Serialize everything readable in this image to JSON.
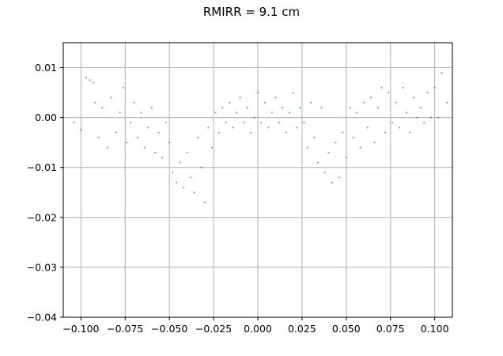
{
  "chart_data": {
    "type": "scatter",
    "title": "RMIRR = 9.1 cm",
    "xlabel": "",
    "ylabel": "",
    "xlim": [
      -0.11,
      0.11
    ],
    "ylim": [
      -0.04,
      0.015
    ],
    "x_ticks": [
      -0.1,
      -0.075,
      -0.05,
      -0.025,
      0.0,
      0.025,
      0.05,
      0.075,
      0.1
    ],
    "x_tick_labels": [
      "−0.100",
      "−0.075",
      "−0.050",
      "−0.025",
      "0.000",
      "0.025",
      "0.050",
      "0.075",
      "0.100"
    ],
    "y_ticks": [
      0.01,
      0.0,
      -0.01,
      -0.02,
      -0.03,
      -0.04
    ],
    "y_tick_labels": [
      "0.01",
      "0.00",
      "−0.01",
      "−0.02",
      "−0.03",
      "−0.04"
    ],
    "grid": true,
    "marker_color": "#1f77b4",
    "series": [
      {
        "name": "",
        "points": [
          [
            -0.104,
            -0.001
          ],
          [
            -0.1,
            -0.0025
          ],
          [
            -0.097,
            0.008
          ],
          [
            -0.095,
            0.0075
          ],
          [
            -0.093,
            0.007
          ],
          [
            -0.092,
            0.003
          ],
          [
            -0.09,
            -0.004
          ],
          [
            -0.088,
            0.002
          ],
          [
            -0.085,
            -0.006
          ],
          [
            -0.083,
            0.004
          ],
          [
            -0.08,
            -0.003
          ],
          [
            -0.078,
            0.001
          ],
          [
            -0.076,
            0.006
          ],
          [
            -0.074,
            -0.005
          ],
          [
            -0.072,
            -0.001
          ],
          [
            -0.07,
            0.003
          ],
          [
            -0.068,
            -0.004
          ],
          [
            -0.066,
            0.001
          ],
          [
            -0.064,
            -0.006
          ],
          [
            -0.062,
            -0.002
          ],
          [
            -0.06,
            0.002
          ],
          [
            -0.058,
            -0.007
          ],
          [
            -0.056,
            -0.003
          ],
          [
            -0.054,
            -0.008
          ],
          [
            -0.052,
            -0.001
          ],
          [
            -0.05,
            -0.005
          ],
          [
            -0.048,
            -0.011
          ],
          [
            -0.046,
            -0.013
          ],
          [
            -0.044,
            -0.009
          ],
          [
            -0.042,
            -0.014
          ],
          [
            -0.04,
            -0.007
          ],
          [
            -0.038,
            -0.012
          ],
          [
            -0.036,
            -0.015
          ],
          [
            -0.034,
            -0.004
          ],
          [
            -0.032,
            -0.01
          ],
          [
            -0.03,
            -0.017
          ],
          [
            -0.028,
            -0.002
          ],
          [
            -0.026,
            -0.006
          ],
          [
            -0.024,
            0.001
          ],
          [
            -0.022,
            -0.003
          ],
          [
            -0.02,
            0.002
          ],
          [
            -0.018,
            -0.001
          ],
          [
            -0.016,
            0.003
          ],
          [
            -0.014,
            -0.002
          ],
          [
            -0.012,
            0.001
          ],
          [
            -0.01,
            0.004
          ],
          [
            -0.008,
            -0.001
          ],
          [
            -0.006,
            0.002
          ],
          [
            -0.004,
            -0.003
          ],
          [
            -0.002,
            0.0
          ],
          [
            0.0,
            0.005
          ],
          [
            0.002,
            -0.001
          ],
          [
            0.004,
            0.003
          ],
          [
            0.006,
            -0.002
          ],
          [
            0.008,
            0.001
          ],
          [
            0.01,
            0.004
          ],
          [
            0.012,
            -0.001
          ],
          [
            0.014,
            0.002
          ],
          [
            0.016,
            -0.003
          ],
          [
            0.018,
            0.001
          ],
          [
            0.02,
            0.005
          ],
          [
            0.022,
            -0.002
          ],
          [
            0.024,
            0.002
          ],
          [
            0.026,
            -0.001
          ],
          [
            0.028,
            -0.006
          ],
          [
            0.03,
            0.003
          ],
          [
            0.032,
            -0.004
          ],
          [
            0.034,
            -0.009
          ],
          [
            0.036,
            0.002
          ],
          [
            0.038,
            -0.011
          ],
          [
            0.04,
            -0.007
          ],
          [
            0.042,
            -0.013
          ],
          [
            0.044,
            -0.005
          ],
          [
            0.046,
            -0.012
          ],
          [
            0.048,
            -0.003
          ],
          [
            0.05,
            -0.008
          ],
          [
            0.052,
            0.002
          ],
          [
            0.054,
            -0.004
          ],
          [
            0.056,
            0.001
          ],
          [
            0.058,
            -0.006
          ],
          [
            0.06,
            0.003
          ],
          [
            0.062,
            -0.002
          ],
          [
            0.064,
            0.004
          ],
          [
            0.066,
            -0.005
          ],
          [
            0.068,
            0.002
          ],
          [
            0.07,
            0.006
          ],
          [
            0.072,
            -0.003
          ],
          [
            0.074,
            0.005
          ],
          [
            0.076,
            -0.001
          ],
          [
            0.078,
            0.003
          ],
          [
            0.08,
            -0.002
          ],
          [
            0.082,
            0.006
          ],
          [
            0.084,
            0.001
          ],
          [
            0.086,
            -0.003
          ],
          [
            0.088,
            0.004
          ],
          [
            0.09,
            0.0
          ],
          [
            0.092,
            0.002
          ],
          [
            0.094,
            -0.001
          ],
          [
            0.096,
            0.005
          ],
          [
            0.098,
            0.0
          ],
          [
            0.1,
            0.006
          ],
          [
            0.102,
            0.0
          ],
          [
            0.104,
            0.009
          ],
          [
            0.107,
            0.003
          ]
        ]
      }
    ]
  }
}
